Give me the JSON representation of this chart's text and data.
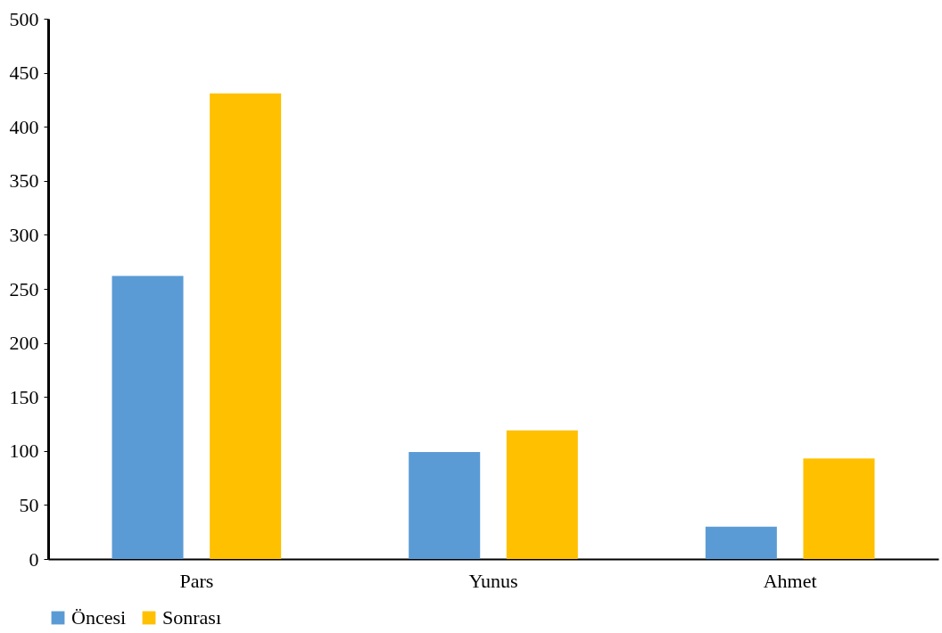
{
  "chart_data": {
    "type": "bar",
    "categories": [
      "Pars",
      "Yunus",
      "Ahmet"
    ],
    "series": [
      {
        "name": "Öncesi",
        "color": "#5b9bd5",
        "values": [
          262,
          99,
          30
        ]
      },
      {
        "name": "Sonrası",
        "color": "#ffc000",
        "values": [
          431,
          119,
          93
        ]
      }
    ],
    "ylim": [
      0,
      500
    ],
    "yticks": [
      0,
      50,
      100,
      150,
      200,
      250,
      300,
      350,
      400,
      450,
      500
    ],
    "grid": false,
    "legend": "bottom"
  }
}
